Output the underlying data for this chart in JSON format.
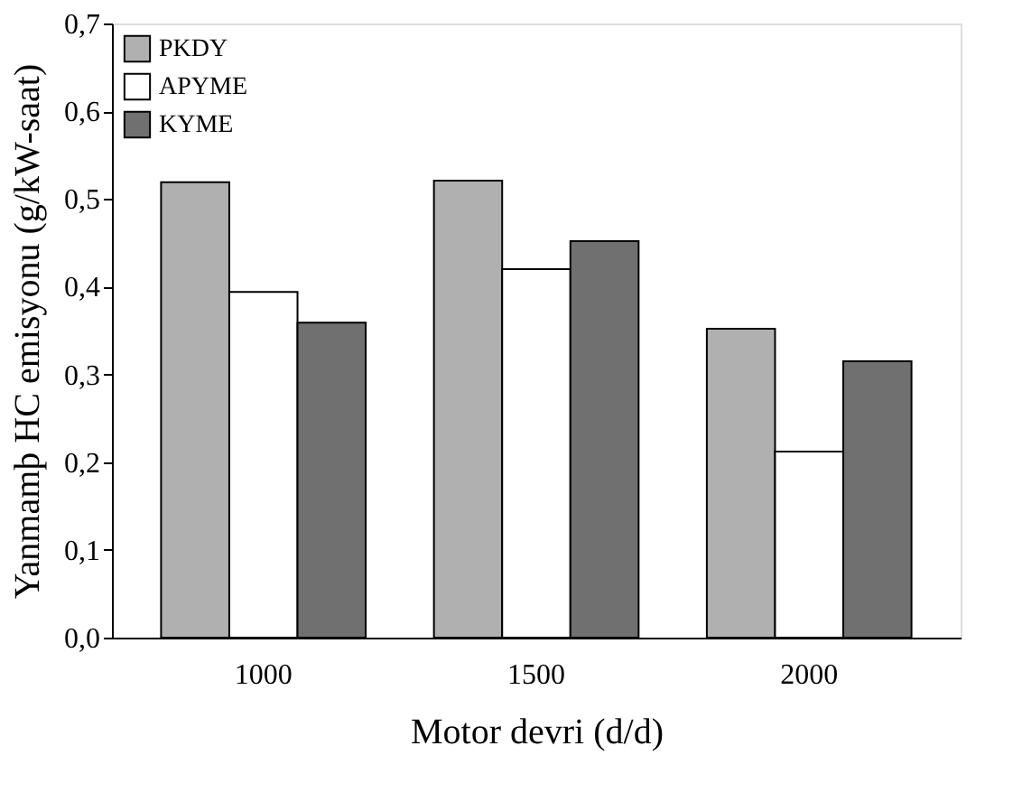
{
  "chart_data": {
    "type": "bar",
    "xlabel": "Motor devri (d/d)",
    "ylabel": "Yanmamþ HC emisyonu (g/kW-saat)",
    "categories": [
      "1000",
      "1500",
      "2000"
    ],
    "series": [
      {
        "name": "PKDY",
        "color": "#b0b0b0",
        "values": [
          0.519,
          0.521,
          0.352
        ]
      },
      {
        "name": "APYME",
        "color": "#ffffff",
        "values": [
          0.394,
          0.42,
          0.212
        ]
      },
      {
        "name": "KYME",
        "color": "#707070",
        "values": [
          0.359,
          0.452,
          0.315
        ]
      }
    ],
    "ylim": [
      0,
      0.7
    ],
    "yticks": [
      {
        "value": 0,
        "label": "0,0"
      },
      {
        "value": 0.1,
        "label": "0,1"
      },
      {
        "value": 0.2,
        "label": "0,2"
      },
      {
        "value": 0.3,
        "label": "0,3"
      },
      {
        "value": 0.4,
        "label": "0,4"
      },
      {
        "value": 0.5,
        "label": "0,5"
      },
      {
        "value": 0.6,
        "label": "0,6"
      },
      {
        "value": 0.7,
        "label": "0,7"
      }
    ],
    "grid": false,
    "legend": "top left"
  }
}
